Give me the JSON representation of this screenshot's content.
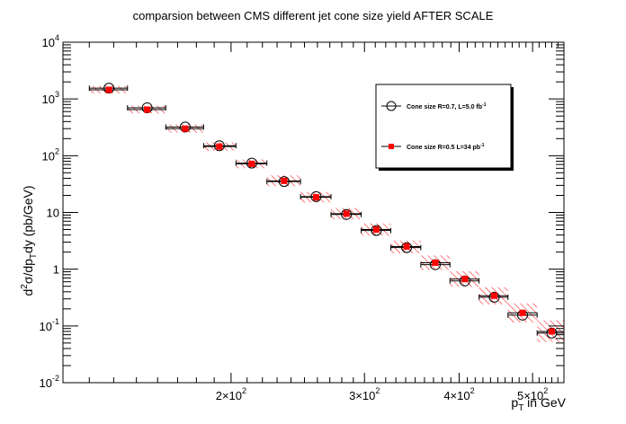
{
  "chart_data": {
    "type": "scatter",
    "title": "comparsion between CMS different jet cone size yield AFTER SCALE",
    "xlabel": {
      "base": "p",
      "sub": "T",
      "rest": " in GeV"
    },
    "ylabel": {
      "t1": "d",
      "s1": "2",
      "t2": "σ/dp",
      "s2": "T",
      "t3": "dy (pb/GeV)"
    },
    "x_scale": "log",
    "y_scale": "log",
    "xlim": [
      120,
      550
    ],
    "ylim": [
      0.01,
      10000
    ],
    "x_ticks": [
      {
        "value": 200,
        "mantissa": "2×10",
        "exp": "2"
      },
      {
        "value": 300,
        "mantissa": "3×10",
        "exp": "2"
      },
      {
        "value": 400,
        "mantissa": "4×10",
        "exp": "2"
      },
      {
        "value": 500,
        "mantissa": "5×10",
        "exp": "2"
      }
    ],
    "y_ticks": [
      {
        "value": 0.01,
        "mantissa": "10",
        "exp": "-2"
      },
      {
        "value": 0.1,
        "mantissa": "10",
        "exp": "-1"
      },
      {
        "value": 1,
        "mantissa": "1",
        "exp": ""
      },
      {
        "value": 10,
        "mantissa": "10",
        "exp": ""
      },
      {
        "value": 100,
        "mantissa": "10",
        "exp": "2"
      },
      {
        "value": 1000,
        "mantissa": "10",
        "exp": "3"
      },
      {
        "value": 10000,
        "mantissa": "10",
        "exp": "4"
      }
    ],
    "grid": false,
    "legend_position": "top-right",
    "series": [
      {
        "name": "Cone size R=0.7, L=5.0 fb",
        "name_sup": "-1",
        "marker": "open-circle",
        "color": "#000000",
        "points": [
          {
            "x": 138,
            "y": 1550,
            "xerr": [
              130,
              146
            ]
          },
          {
            "x": 155,
            "y": 700,
            "xerr": [
              146,
              164
            ]
          },
          {
            "x": 174,
            "y": 320,
            "xerr": [
              164,
              184
            ]
          },
          {
            "x": 193,
            "y": 150,
            "xerr": [
              184,
              203
            ]
          },
          {
            "x": 213,
            "y": 74,
            "xerr": [
              203,
              223
            ]
          },
          {
            "x": 235,
            "y": 35,
            "xerr": [
              223,
              247
            ]
          },
          {
            "x": 259,
            "y": 19,
            "xerr": [
              247,
              271
            ]
          },
          {
            "x": 284,
            "y": 9.2,
            "xerr": [
              271,
              297
            ]
          },
          {
            "x": 311,
            "y": 4.8,
            "xerr": [
              297,
              325
            ]
          },
          {
            "x": 341,
            "y": 2.4,
            "xerr": [
              325,
              356
            ]
          },
          {
            "x": 372,
            "y": 1.2,
            "xerr": [
              356,
              389
            ]
          },
          {
            "x": 407,
            "y": 0.62,
            "xerr": [
              389,
              425
            ]
          },
          {
            "x": 445,
            "y": 0.32,
            "xerr": [
              425,
              464
            ]
          },
          {
            "x": 485,
            "y": 0.155,
            "xerr": [
              464,
              507
            ]
          },
          {
            "x": 530,
            "y": 0.075,
            "xerr": [
              507,
              550
            ]
          }
        ]
      },
      {
        "name": "Cone size R=0.5 L=34 pb",
        "name_sup": "-1",
        "marker": "filled-square",
        "color": "#ff0000",
        "points": [
          {
            "x": 138,
            "y": 1450,
            "yband": [
              1250,
              1700
            ],
            "xerr": [
              130,
              146
            ]
          },
          {
            "x": 155,
            "y": 650,
            "yband": [
              555,
              760
            ],
            "xerr": [
              146,
              164
            ]
          },
          {
            "x": 174,
            "y": 300,
            "yband": [
              255,
              355
            ],
            "xerr": [
              164,
              184
            ]
          },
          {
            "x": 193,
            "y": 145,
            "yband": [
              122,
              172
            ],
            "xerr": [
              184,
              203
            ]
          },
          {
            "x": 213,
            "y": 72,
            "yband": [
              60,
              86
            ],
            "xerr": [
              203,
              223
            ]
          },
          {
            "x": 235,
            "y": 36,
            "yband": [
              29,
              45
            ],
            "xerr": [
              223,
              247
            ]
          },
          {
            "x": 259,
            "y": 18.5,
            "yband": [
              15,
              23
            ],
            "xerr": [
              247,
              271
            ]
          },
          {
            "x": 284,
            "y": 9.5,
            "yband": [
              7.6,
              12
            ],
            "xerr": [
              271,
              297
            ]
          },
          {
            "x": 311,
            "y": 5.0,
            "yband": [
              3.9,
              6.4
            ],
            "xerr": [
              297,
              325
            ]
          },
          {
            "x": 341,
            "y": 2.5,
            "yband": [
              1.9,
              3.2
            ],
            "xerr": [
              325,
              356
            ]
          },
          {
            "x": 372,
            "y": 1.3,
            "yband": [
              0.97,
              1.75
            ],
            "xerr": [
              356,
              389
            ]
          },
          {
            "x": 407,
            "y": 0.67,
            "yband": [
              0.49,
              0.92
            ],
            "xerr": [
              389,
              425
            ]
          },
          {
            "x": 445,
            "y": 0.34,
            "yband": [
              0.24,
              0.48
            ],
            "xerr": [
              425,
              464
            ]
          },
          {
            "x": 485,
            "y": 0.17,
            "yband": [
              0.115,
              0.25
            ],
            "xerr": [
              464,
              507
            ]
          },
          {
            "x": 530,
            "y": 0.08,
            "yband": [
              0.052,
              0.125
            ],
            "xerr": [
              507,
              550
            ]
          }
        ]
      }
    ]
  }
}
